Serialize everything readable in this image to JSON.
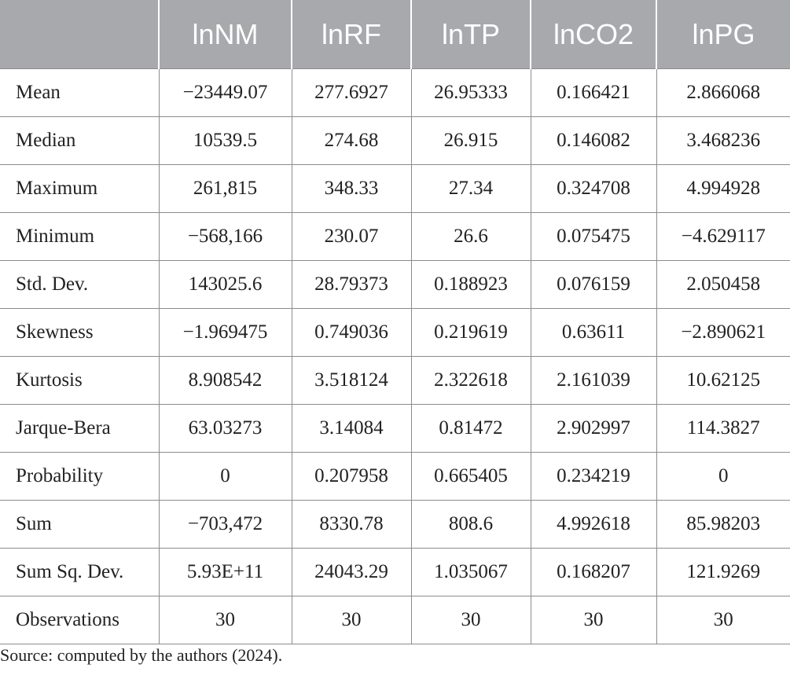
{
  "table": {
    "headers": [
      "",
      "lnNM",
      "lnRF",
      "lnTP",
      "lnCO2",
      "lnPG"
    ],
    "rows": [
      [
        "Mean",
        "−23449.07",
        "277.6927",
        "26.95333",
        "0.166421",
        "2.866068"
      ],
      [
        "Median",
        "10539.5",
        "274.68",
        "26.915",
        "0.146082",
        "3.468236"
      ],
      [
        "Maximum",
        "261,815",
        "348.33",
        "27.34",
        "0.324708",
        "4.994928"
      ],
      [
        "Minimum",
        "−568,166",
        "230.07",
        "26.6",
        "0.075475",
        "−4.629117"
      ],
      [
        "Std. Dev.",
        "143025.6",
        "28.79373",
        "0.188923",
        "0.076159",
        "2.050458"
      ],
      [
        "Skewness",
        "−1.969475",
        "0.749036",
        "0.219619",
        "0.63611",
        "−2.890621"
      ],
      [
        "Kurtosis",
        "8.908542",
        "3.518124",
        "2.322618",
        "2.161039",
        "10.62125"
      ],
      [
        "Jarque-Bera",
        "63.03273",
        "3.14084",
        "0.81472",
        "2.902997",
        "114.3827"
      ],
      [
        "Probability",
        "0",
        "0.207958",
        "0.665405",
        "0.234219",
        "0"
      ],
      [
        "Sum",
        "−703,472",
        "8330.78",
        "808.6",
        "4.992618",
        "85.98203"
      ],
      [
        "Sum Sq. Dev.",
        "5.93E+11",
        "24043.29",
        "1.035067",
        "0.168207",
        "121.9269"
      ],
      [
        "Observations",
        "30",
        "30",
        "30",
        "30",
        "30"
      ]
    ]
  },
  "source_note": "Source: computed by the authors (2024).",
  "colors": {
    "header_bg": "#a7a9ac",
    "header_text": "#ffffff",
    "grid_line": "#8c8c8c",
    "body_text": "#222222"
  }
}
